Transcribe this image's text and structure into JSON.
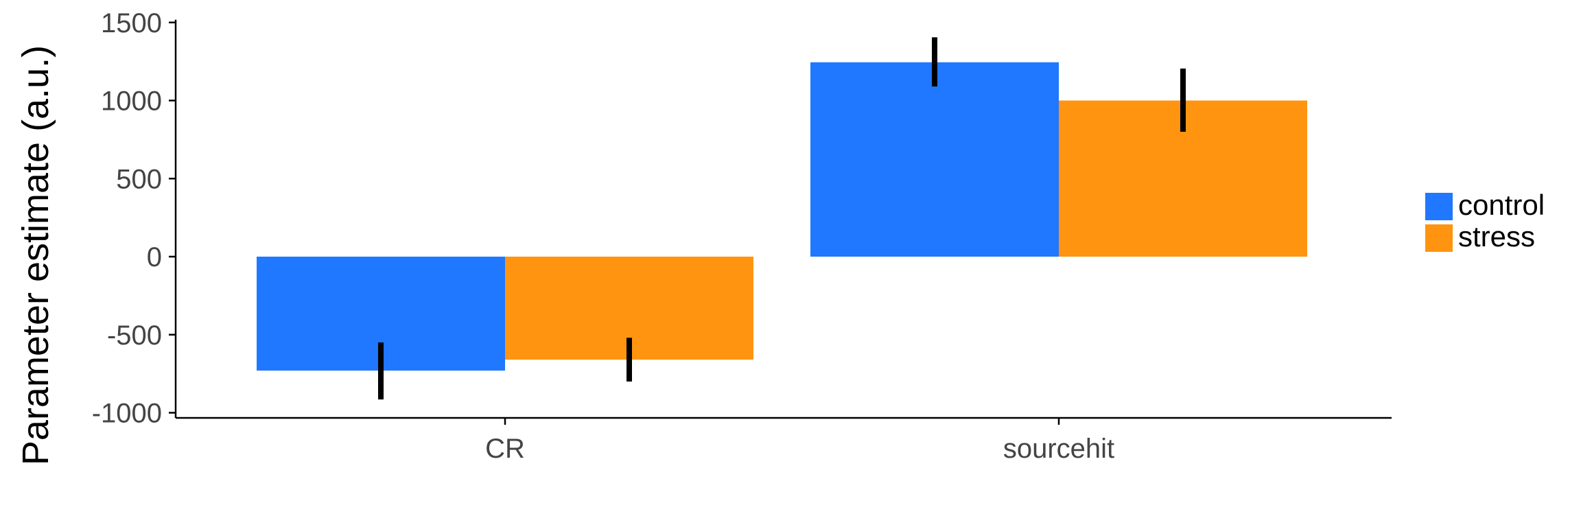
{
  "chart_data": {
    "type": "bar",
    "title": "",
    "xlabel": "",
    "ylabel": "Parameter estimate (a.u.)",
    "categories": [
      "CR",
      "sourcehit"
    ],
    "series": [
      {
        "name": "control",
        "color": "#1f78ff",
        "values": [
          -730,
          1245
        ],
        "error_low": [
          -915,
          1090
        ],
        "error_high": [
          -550,
          1405
        ]
      },
      {
        "name": "stress",
        "color": "#ff9410",
        "values": [
          -660,
          1000
        ],
        "error_low": [
          -800,
          800
        ],
        "error_high": [
          -520,
          1205
        ]
      }
    ],
    "yticks": [
      -1000,
      -500,
      0,
      500,
      1000,
      1500
    ],
    "ylim": [
      -1030,
      1540
    ],
    "grid": false,
    "legend_position": "right",
    "error_bar_color": "#000000"
  }
}
